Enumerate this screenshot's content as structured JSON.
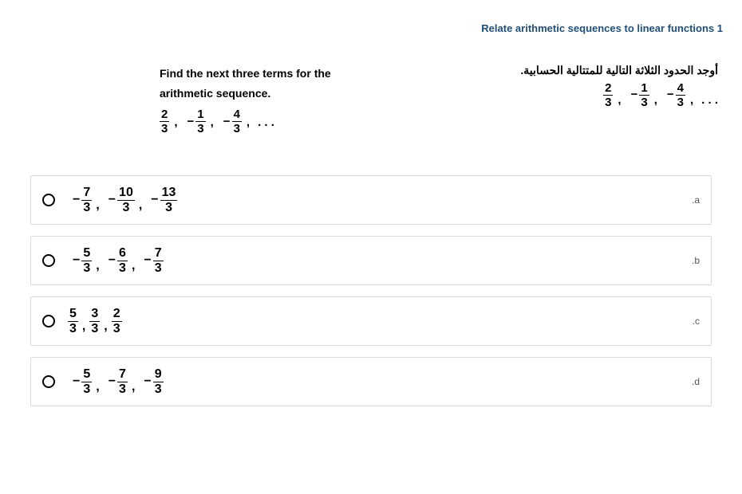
{
  "title": "Relate arithmetic sequences to linear functions 1",
  "question": {
    "en_line1": "Find the next three terms for the",
    "en_line2": "arithmetic sequence.",
    "ar": "أوجد الحدود الثلاثة التالية للمتتالية الحسابية.",
    "seq": [
      {
        "neg": false,
        "num": "2",
        "den": "3"
      },
      {
        "neg": true,
        "num": "1",
        "den": "3"
      },
      {
        "neg": true,
        "num": "4",
        "den": "3"
      }
    ]
  },
  "options": [
    {
      "letter": "a",
      "terms": [
        {
          "neg": true,
          "num": "7",
          "den": "3"
        },
        {
          "neg": true,
          "num": "10",
          "den": "3"
        },
        {
          "neg": true,
          "num": "13",
          "den": "3"
        }
      ]
    },
    {
      "letter": "b",
      "terms": [
        {
          "neg": true,
          "num": "5",
          "den": "3"
        },
        {
          "neg": true,
          "num": "6",
          "den": "3"
        },
        {
          "neg": true,
          "num": "7",
          "den": "3"
        }
      ]
    },
    {
      "letter": "c",
      "terms": [
        {
          "neg": false,
          "num": "5",
          "den": "3"
        },
        {
          "neg": false,
          "num": "3",
          "den": "3"
        },
        {
          "neg": false,
          "num": "2",
          "den": "3"
        }
      ]
    },
    {
      "letter": "d",
      "terms": [
        {
          "neg": true,
          "num": "5",
          "den": "3"
        },
        {
          "neg": true,
          "num": "7",
          "den": "3"
        },
        {
          "neg": true,
          "num": "9",
          "den": "3"
        }
      ]
    }
  ],
  "style": {
    "title_color": "#1f4e79",
    "border_color": "#d9d9d9",
    "text_color": "#000000"
  }
}
